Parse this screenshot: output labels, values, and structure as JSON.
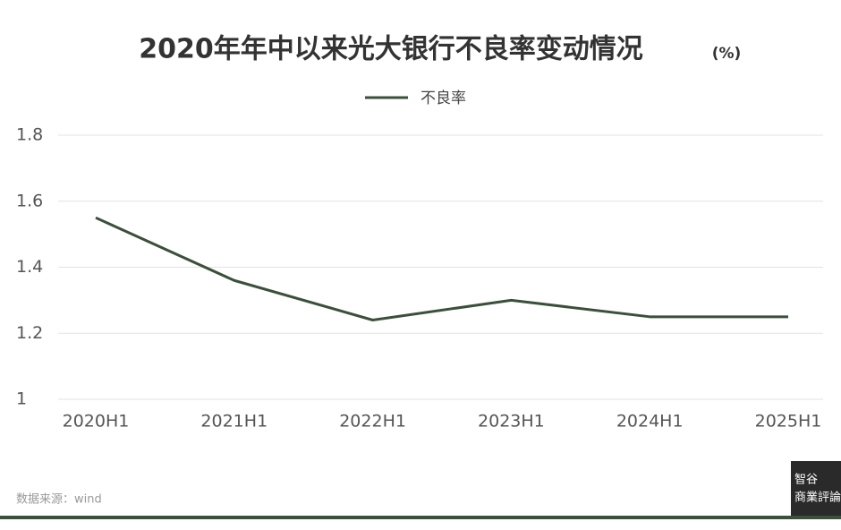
{
  "chart_data": {
    "type": "line",
    "title": "2020年年中以来光大银行不良率变动情况",
    "unit": "(%)",
    "categories": [
      "2020H1",
      "2021H1",
      "2022H1",
      "2023H1",
      "2024H1",
      "2025H1"
    ],
    "series": [
      {
        "name": "不良率",
        "color": "#3b4f3c",
        "values": [
          1.55,
          1.36,
          1.24,
          1.3,
          1.25,
          1.25
        ]
      }
    ],
    "ylim": [
      1,
      1.8
    ],
    "yticks": [
      1,
      1.2,
      1.4,
      1.6,
      1.8
    ],
    "grid": true,
    "legend": "top",
    "source": "数据来源：wind",
    "logo": [
      "智谷",
      "商業評論"
    ]
  }
}
